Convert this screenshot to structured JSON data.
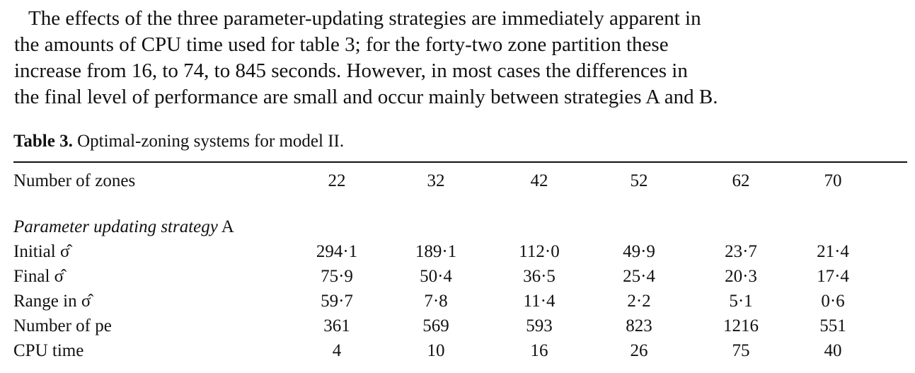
{
  "paragraph": {
    "lines": [
      "The effects of the three parameter-updating strategies are immediately apparent in",
      "the amounts of CPU time used for table 3;  for the forty-two zone partition these",
      "increase from 16, to 74, to 845 seconds.  However, in most cases the differences in",
      "the final level of performance are small and occur mainly between strategies A and B."
    ]
  },
  "table": {
    "caption_label": "Table 3.",
    "caption_text": "Optimal-zoning systems for model II.",
    "header": {
      "label": "Number of zones",
      "values": [
        "22",
        "32",
        "42",
        "52",
        "62",
        "70"
      ]
    },
    "section": {
      "label_italic": "Parameter updating strategy",
      "label_suffix": "A"
    },
    "rows": [
      {
        "label": "Initial σ̂",
        "values": [
          "294·1",
          "189·1",
          "112·0",
          "49·9",
          "23·7",
          "21·4"
        ]
      },
      {
        "label": "Final σ̂",
        "values": [
          "75·9",
          "50·4",
          "36·5",
          "25·4",
          "20·3",
          "17·4"
        ]
      },
      {
        "label": "Range in σ̂",
        "values": [
          "59·7",
          "7·8",
          "11·4",
          "2·2",
          "5·1",
          "0·6"
        ]
      },
      {
        "label": "Number of pe",
        "values": [
          "361",
          "569",
          "593",
          "823",
          "1216",
          "551"
        ]
      },
      {
        "label": "CPU time",
        "values": [
          "4",
          "10",
          "16",
          "26",
          "75",
          "40"
        ]
      }
    ]
  }
}
